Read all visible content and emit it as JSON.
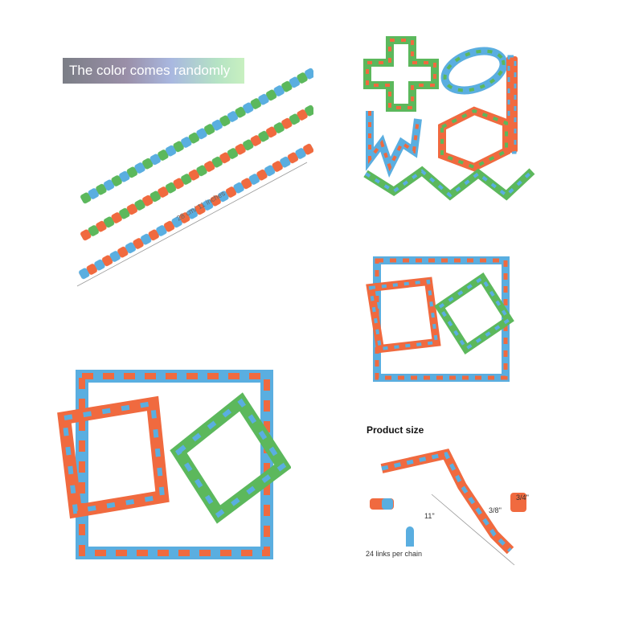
{
  "banner": {
    "text": "The color comes randomly"
  },
  "length_label": {
    "text": "28 cm/ 11 inches"
  },
  "product_size": {
    "title": "Product size",
    "length": "11''",
    "width": "3/4''",
    "height": "3/8''",
    "links_note": "24 links per chain"
  },
  "colors": {
    "green": "#5cb85c",
    "blue": "#5aaee0",
    "orange": "#f06a3f"
  }
}
